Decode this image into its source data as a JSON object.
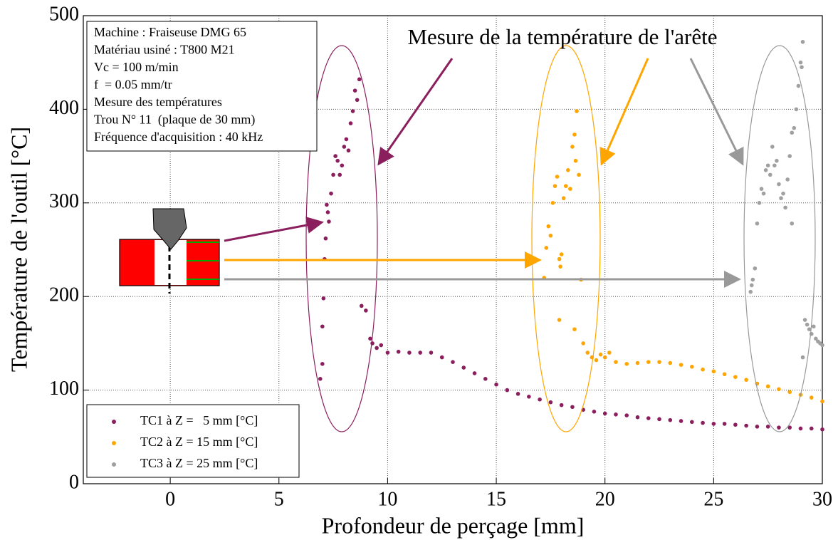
{
  "chart_data": {
    "type": "scatter",
    "xlabel": "Profondeur de perçage [mm]",
    "ylabel": "Température de l'outil [°C]",
    "annotation": "Mesure de la température de l'arête",
    "info_box": [
      "Machine : Fraiseuse DMG 65",
      "Matériau usiné : T800 M21",
      "Vc = 100 m/min",
      "f  = 0.05 mm/tr",
      "Mesure des températures",
      "Trou N° 11  (plaque de 30 mm)",
      "Fréquence d'acquisition : 40 kHz"
    ],
    "xlim": [
      -4,
      30
    ],
    "ylim": [
      0,
      500
    ],
    "xticks": [
      0,
      5,
      10,
      15,
      20,
      25,
      30
    ],
    "yticks": [
      0,
      100,
      200,
      300,
      400,
      500
    ],
    "grid": true,
    "legend": "lower left",
    "series": [
      {
        "name": "TC1 à Z =   5 mm [°C]",
        "color": "#8b1f5e",
        "x": [
          6.9,
          7.0,
          7.0,
          7.05,
          7.1,
          7.15,
          7.2,
          7.25,
          7.3,
          7.4,
          7.5,
          7.6,
          7.7,
          7.8,
          7.9,
          8.0,
          8.1,
          8.2,
          8.3,
          8.4,
          8.5,
          8.6,
          8.7,
          8.8,
          9.0,
          9.2,
          9.3,
          9.5,
          9.7,
          10,
          10.5,
          11,
          11.5,
          12,
          12.5,
          13,
          13.5,
          14,
          14.5,
          15,
          15.5,
          16,
          16.5,
          17,
          17.5,
          18,
          18.5,
          19,
          19.5,
          20,
          20.5,
          21,
          21.5,
          22,
          22.5,
          23,
          23.5,
          24,
          24.5,
          25,
          25.5,
          26,
          26.5,
          27,
          27.5,
          28,
          28.5,
          29,
          29.5,
          30
        ],
        "values": [
          112,
          128,
          168,
          198,
          240,
          262,
          298,
          290,
          280,
          310,
          330,
          350,
          345,
          330,
          340,
          360,
          368,
          356,
          385,
          398,
          420,
          410,
          432,
          190,
          185,
          155,
          150,
          145,
          148,
          140,
          141,
          140,
          140,
          140,
          135,
          130,
          124,
          118,
          112,
          106,
          100,
          96,
          93,
          90,
          87,
          84,
          82,
          79,
          77,
          75,
          74,
          73,
          71,
          70,
          69,
          68,
          67,
          66,
          65,
          64,
          64,
          63,
          62,
          61,
          61,
          60,
          60,
          59,
          59,
          58
        ]
      },
      {
        "name": "TC2 à Z = 15 mm [°C]",
        "color": "#ffa500",
        "x": [
          17.2,
          17.3,
          17.4,
          17.5,
          17.6,
          17.7,
          17.8,
          17.9,
          17.95,
          18.0,
          18.1,
          18.2,
          18.3,
          18.4,
          18.5,
          18.6,
          18.65,
          18.7,
          18.8,
          18.9,
          17.9,
          18.6,
          19.0,
          19.2,
          19.4,
          19.6,
          19.8,
          20.0,
          20.2,
          20.5,
          21,
          21.5,
          22,
          22.5,
          23,
          23.5,
          24,
          24.5,
          25,
          25.5,
          26,
          26.5,
          27,
          27.5,
          28,
          28.5,
          29,
          29.5,
          30
        ],
        "values": [
          220,
          252,
          275,
          265,
          300,
          318,
          328,
          240,
          232,
          245,
          305,
          318,
          335,
          315,
          360,
          373,
          345,
          398,
          330,
          218,
          175,
          165,
          150,
          140,
          135,
          132,
          138,
          135,
          140,
          130,
          128,
          129,
          130,
          130,
          129,
          127,
          125,
          122,
          120,
          117,
          114,
          111,
          107,
          104,
          101,
          98,
          95,
          92,
          88
        ]
      },
      {
        "name": "TC3 à Z = 25 mm [°C]",
        "color": "#a0a0a0",
        "x": [
          26.7,
          26.75,
          26.8,
          26.9,
          27.0,
          27.1,
          27.2,
          27.3,
          27.4,
          27.5,
          27.6,
          27.7,
          27.8,
          27.9,
          28.0,
          28.1,
          28.2,
          28.3,
          28.4,
          28.5,
          28.6,
          28.7,
          28.8,
          28.9,
          29.0,
          29.05,
          29.1,
          28.6,
          29.1,
          29.2,
          29.3,
          29.4,
          29.5,
          29.6,
          29.7,
          29.8,
          29.9,
          30
        ],
        "values": [
          205,
          212,
          218,
          230,
          278,
          300,
          315,
          310,
          335,
          340,
          330,
          360,
          340,
          345,
          320,
          305,
          310,
          295,
          325,
          350,
          375,
          380,
          400,
          425,
          450,
          445,
          472,
          278,
          135,
          175,
          170,
          165,
          160,
          168,
          155,
          152,
          150,
          148
        ]
      }
    ]
  }
}
